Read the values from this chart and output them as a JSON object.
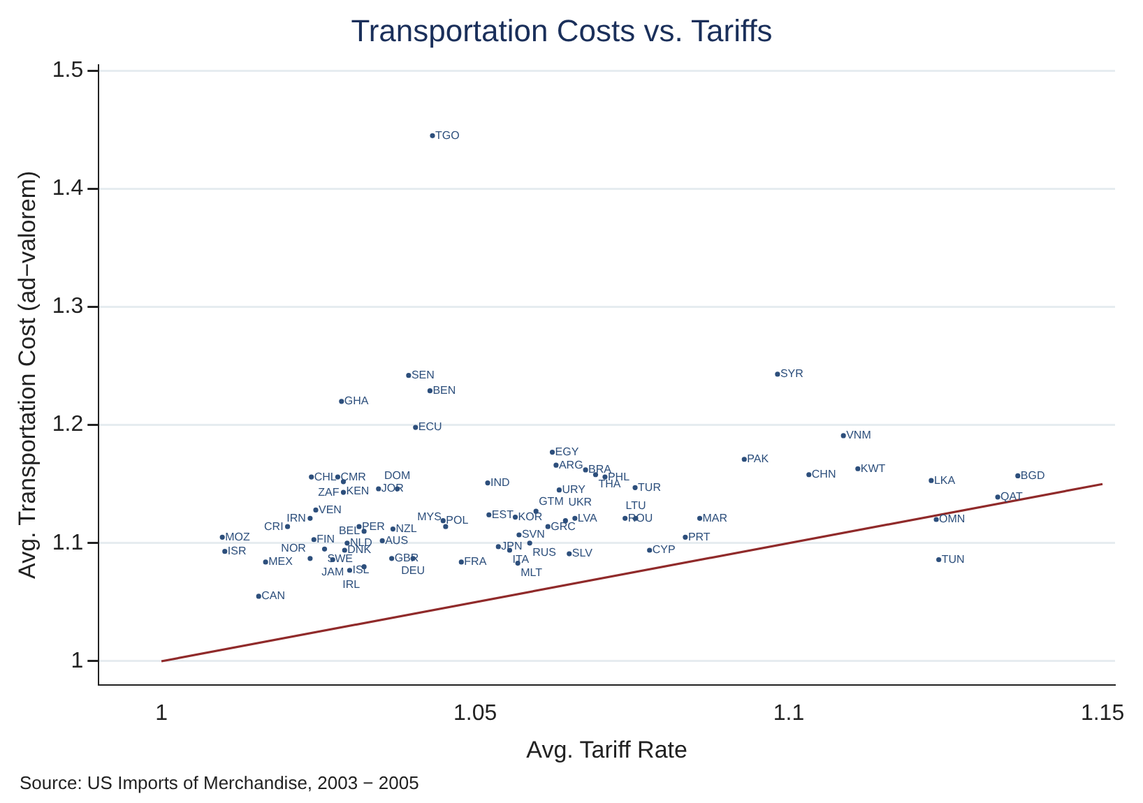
{
  "chart_data": {
    "type": "scatter",
    "title": "Transportation Costs vs. Tariffs",
    "xlabel": "Avg. Tariff Rate",
    "ylabel": "Avg. Transportation Cost (ad−valorem)",
    "annotations": [
      "Source: US Imports of Merchandise, 2003 − 2005"
    ],
    "xlim": [
      0.99,
      1.152
    ],
    "ylim": [
      0.98,
      1.505
    ],
    "xticks": [
      1,
      1.05,
      1.1,
      1.15
    ],
    "yticks": [
      1,
      1.1,
      1.2,
      1.3,
      1.4,
      1.5
    ],
    "grid": "y",
    "legend": false,
    "series": [
      {
        "type": "scatter",
        "color": "#2d4f7c",
        "marker": "circle",
        "x": [
          1.0432,
          1.0394,
          1.0428,
          1.0287,
          1.0405,
          1.0239,
          1.0281,
          1.029,
          1.029,
          1.0346,
          1.0376,
          1.052,
          1.0246,
          1.0237,
          1.0201,
          1.0097,
          1.0101,
          1.0166,
          1.0155,
          1.0315,
          1.0323,
          1.0369,
          1.0352,
          1.0243,
          1.0296,
          1.026,
          1.0292,
          1.0237,
          1.0273,
          1.03,
          1.0323,
          1.0367,
          1.0401,
          1.0449,
          1.0453,
          1.0478,
          1.0522,
          1.0564,
          1.0597,
          1.0616,
          1.057,
          1.0587,
          1.0537,
          1.0555,
          1.0568,
          1.065,
          1.0623,
          1.0629,
          1.0676,
          1.0692,
          1.0707,
          1.0634,
          1.0755,
          1.0659,
          1.0644,
          1.0739,
          1.0756,
          1.0835,
          1.0858,
          1.0778,
          1.0982,
          1.1087,
          1.0929,
          1.1032,
          1.111,
          1.1227,
          1.1365,
          1.1333,
          1.1235,
          1.1239
        ],
        "values": [
          1.445,
          1.242,
          1.229,
          1.22,
          1.198,
          1.156,
          1.156,
          1.152,
          1.143,
          1.146,
          1.146,
          1.151,
          1.128,
          1.121,
          1.114,
          1.105,
          1.093,
          1.084,
          1.055,
          1.114,
          1.11,
          1.112,
          1.102,
          1.103,
          1.1,
          1.095,
          1.094,
          1.087,
          1.086,
          1.077,
          1.08,
          1.087,
          1.087,
          1.119,
          1.114,
          1.084,
          1.124,
          1.122,
          1.127,
          1.114,
          1.107,
          1.1,
          1.097,
          1.094,
          1.083,
          1.091,
          1.177,
          1.166,
          1.162,
          1.158,
          1.156,
          1.145,
          1.147,
          1.121,
          1.119,
          1.121,
          1.121,
          1.105,
          1.121,
          1.094,
          1.243,
          1.191,
          1.171,
          1.158,
          1.163,
          1.153,
          1.157,
          1.139,
          1.12,
          1.086
        ],
        "value_labels": [
          "TGO",
          "SEN",
          "BEN",
          "GHA",
          "ECU",
          "CHL",
          "CMR",
          "KEN",
          "ZAF",
          "JOR",
          "DOM",
          "IND",
          "VEN",
          "IRN",
          "CRI",
          "MOZ",
          "ISR",
          "MEX",
          "CAN",
          "PER",
          "BEL",
          "NZL",
          "AUS",
          "FIN",
          "NLD",
          "SWE",
          "DNK",
          "NOR",
          "JAM",
          "ISL",
          "IRL",
          "GBR",
          "DEU",
          "POL",
          "MYS",
          "FRA",
          "EST",
          "KOR",
          "GTM",
          "GRC",
          "SVN",
          "RUS",
          "JPN",
          "ITA",
          "MLT",
          "SLV",
          "EGY",
          "ARG",
          "BRA",
          "THA",
          "PHL",
          "URY",
          "TUR",
          "LVA",
          "UKR",
          "ROU",
          "LTU",
          "PRT",
          "MAR",
          "CYP",
          "SYR",
          "VNM",
          "PAK",
          "CHN",
          "KWT",
          "LKA",
          "BGD",
          "QAT",
          "OMN",
          "TUN"
        ]
      },
      {
        "type": "line",
        "color": "#902a2a",
        "marker": "none",
        "x": [
          1,
          1.15
        ],
        "values": [
          1,
          1.15
        ]
      }
    ]
  }
}
